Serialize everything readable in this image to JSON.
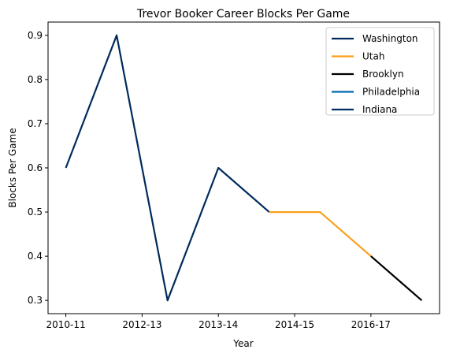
{
  "chart_data": {
    "type": "line",
    "title": "Trevor Booker Career Blocks Per Game",
    "xlabel": "Year",
    "ylabel": "Blocks Per Game",
    "x_positions": [
      0,
      1,
      2,
      3,
      4,
      5,
      6,
      7
    ],
    "x_tick_positions": [
      0,
      1.5,
      3,
      4.5,
      6
    ],
    "x_tick_labels": [
      "2010-11",
      "2012-13",
      "2013-14",
      "2014-15",
      "2016-17"
    ],
    "y_ticks": [
      0.3,
      0.4,
      0.5,
      0.6,
      0.7,
      0.8,
      0.9
    ],
    "y_tick_labels": [
      "0.3",
      "0.4",
      "0.5",
      "0.6",
      "0.7",
      "0.8",
      "0.9"
    ],
    "xlim": [
      -0.35,
      7.35
    ],
    "ylim": [
      0.27,
      0.93
    ],
    "grid": false,
    "legend_position": "top-right",
    "series": [
      {
        "name": "Washington",
        "color": "#002B5C",
        "points": [
          [
            0,
            0.6
          ],
          [
            1,
            0.9
          ],
          [
            2,
            0.3
          ],
          [
            3,
            0.6
          ],
          [
            4,
            0.5
          ]
        ]
      },
      {
        "name": "Utah",
        "color": "#F9A01B",
        "points": [
          [
            4,
            0.5
          ],
          [
            5,
            0.5
          ],
          [
            6,
            0.4
          ]
        ]
      },
      {
        "name": "Brooklyn",
        "color": "#000000",
        "points": [
          [
            6,
            0.4
          ],
          [
            7,
            0.3
          ]
        ]
      },
      {
        "name": "Philadelphia",
        "color": "#006BB6",
        "points": []
      },
      {
        "name": "Indiana",
        "color": "#002D62",
        "points": []
      }
    ]
  }
}
